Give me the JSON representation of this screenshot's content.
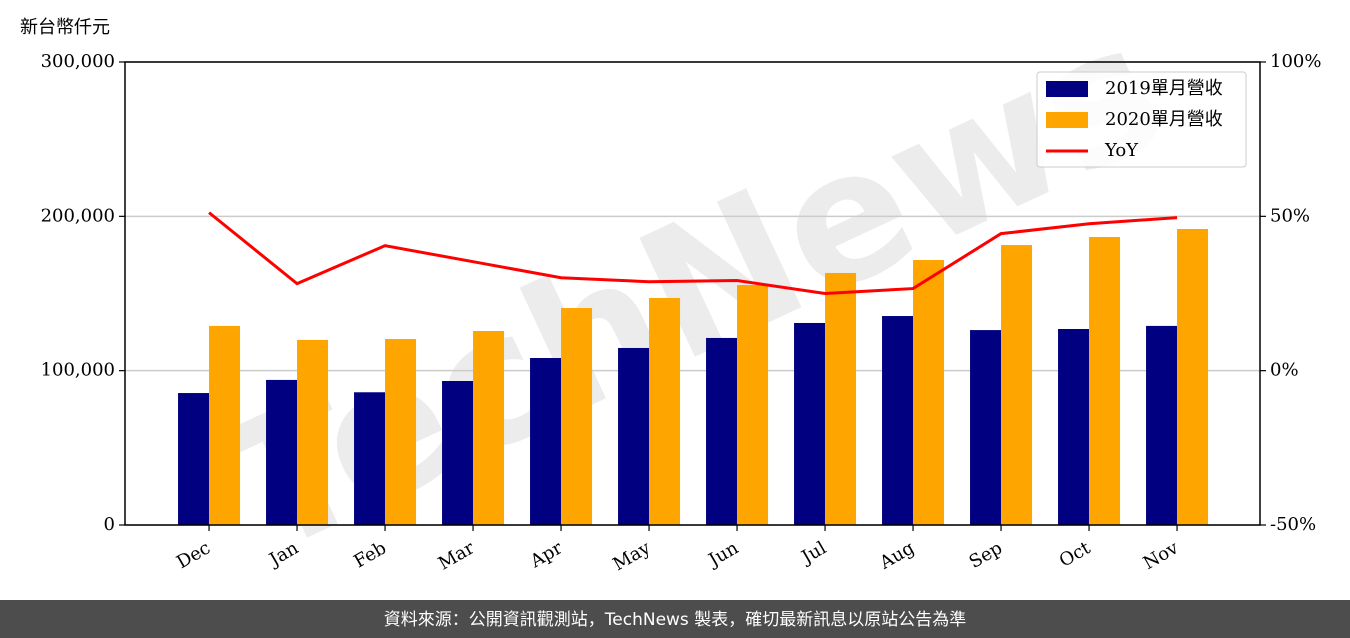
{
  "chart_data": {
    "type": "bar",
    "y_label": "新台幣仟元",
    "watermark": "TechNews",
    "footer": "資料來源：公開資訊觀測站，TechNews 製表，確切最新訊息以原站公告為準",
    "categories": [
      "Dec",
      "Jan",
      "Feb",
      "Mar",
      "Apr",
      "May",
      "Jun",
      "Jul",
      "Aug",
      "Sep",
      "Oct",
      "Nov"
    ],
    "series": [
      {
        "name": "2019單月營收",
        "color": "#000080",
        "values": [
          85500,
          94000,
          86000,
          93300,
          108200,
          114700,
          121200,
          130900,
          135400,
          126300,
          127000,
          129000
        ]
      },
      {
        "name": "2020單月營收",
        "color": "#ffa500",
        "values": [
          129000,
          119900,
          120500,
          125700,
          140600,
          147100,
          155500,
          163300,
          171700,
          181400,
          186600,
          191800
        ]
      },
      {
        "name": "YoY",
        "color": "#ff0000",
        "type": "line",
        "axis": "y2",
        "values": [
          51.2,
          28.2,
          40.5,
          35.3,
          30.1,
          28.8,
          29.2,
          25.0,
          26.6,
          44.4,
          47.6,
          49.6
        ]
      }
    ],
    "ylim": [
      0,
      300000
    ],
    "yticks": [
      {
        "value": 0,
        "label": "0"
      },
      {
        "value": 100000,
        "label": "100,000"
      },
      {
        "value": 200000,
        "label": "200,000"
      },
      {
        "value": 300000,
        "label": "300,000"
      }
    ],
    "y2lim": [
      -50,
      100
    ],
    "y2ticks": [
      {
        "value": -50,
        "label": "-50%"
      },
      {
        "value": 0,
        "label": "0%"
      },
      {
        "value": 50,
        "label": "50%"
      },
      {
        "value": 100,
        "label": "100%"
      }
    ],
    "grid": true,
    "legend": "upper right"
  }
}
